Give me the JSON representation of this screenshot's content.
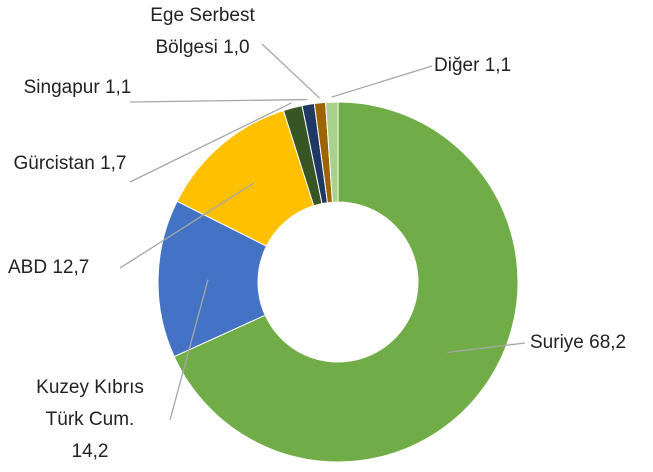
{
  "chart_data": {
    "type": "donut",
    "categories": [
      "Suriye",
      "Kuzey Kıbrıs Türk Cum.",
      "ABD",
      "Gürcistan",
      "Singapur",
      "Ege Serbest Bölgesi",
      "Diğer"
    ],
    "values": [
      68.2,
      14.2,
      12.7,
      1.7,
      1.1,
      1.0,
      1.1
    ],
    "value_labels": [
      "68,2",
      "14,2",
      "12,7",
      "1,7",
      "1,1",
      "1,0",
      "1,1"
    ],
    "colors": [
      "#70ad47",
      "#4472c4",
      "#ffc000",
      "#375623",
      "#1f3864",
      "#9c6500",
      "#a9d18e"
    ]
  }
}
